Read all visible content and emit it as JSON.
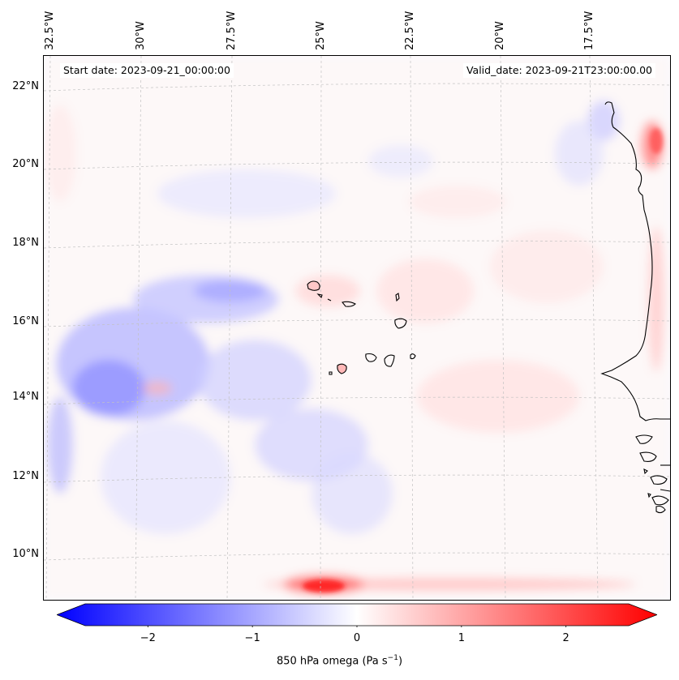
{
  "header": {
    "start_date": "Start date: 2023-09-21_00:00:00",
    "valid_date": "Valid_date: 2023-09-21T23:00:00.00"
  },
  "axes": {
    "lon_labels": [
      "32.5°W",
      "30°W",
      "27.5°W",
      "25°W",
      "22.5°W",
      "20°W",
      "17.5°W"
    ],
    "lat_labels": [
      "22°N",
      "20°N",
      "18°N",
      "16°N",
      "14°N",
      "12°N",
      "10°N"
    ]
  },
  "colorbar": {
    "ticks": [
      "−2",
      "−1",
      "0",
      "1",
      "2"
    ],
    "label_main": "850 hPa omega (Pa s",
    "label_sup": "−1",
    "label_end": ")",
    "range": [
      -2.6,
      2.6
    ],
    "colors": {
      "negative": "#0000ff",
      "zero": "#ffffff",
      "positive": "#ff0000"
    }
  },
  "map": {
    "region": "Cabo Verde and West Africa coast",
    "coastline_color": "#000000",
    "gridline_color": "#bbbbbb"
  }
}
